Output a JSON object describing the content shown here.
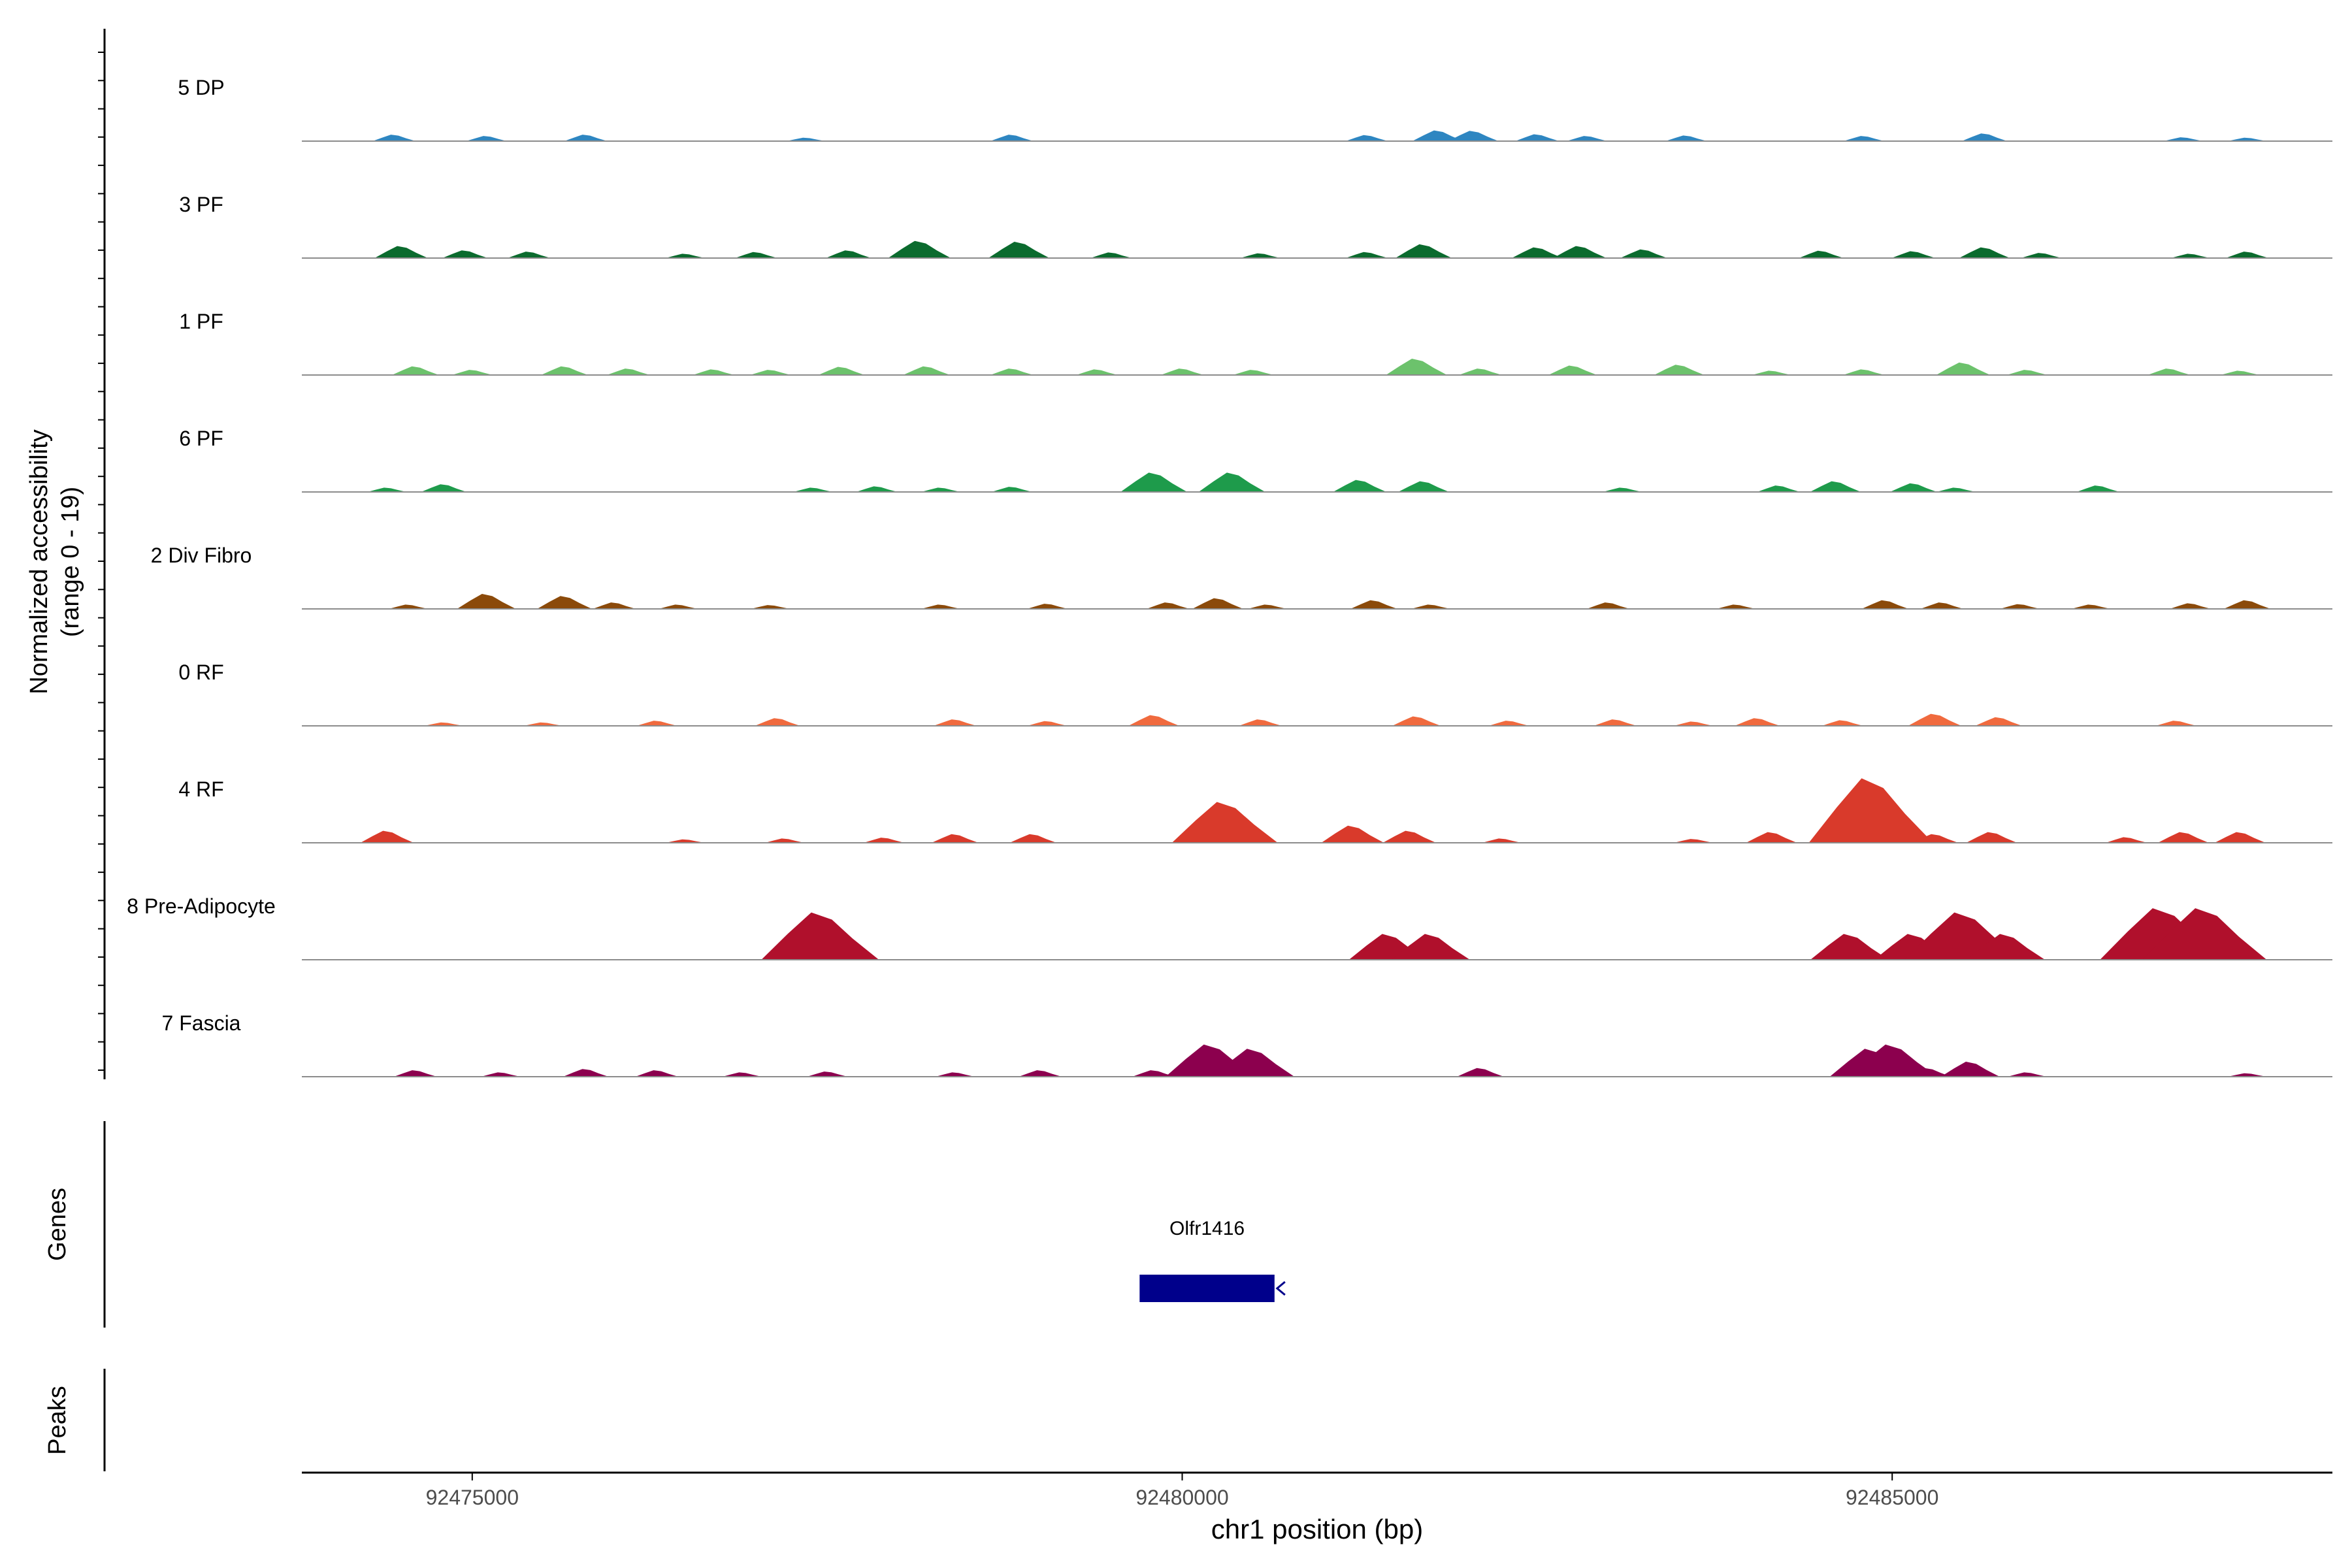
{
  "chart_data": {
    "type": "area",
    "title": "",
    "ylabel_line1": "Normalized accessibility",
    "ylabel_line2": "(range 0 - 19)",
    "xlabel": "chr1 position (bp)",
    "xlim": [
      92473800,
      92488100
    ],
    "ylim": [
      0,
      19
    ],
    "xticks": [
      92475000,
      92480000,
      92485000
    ],
    "xtick_labels": [
      "92475000",
      "92480000",
      "92485000"
    ],
    "series": [
      {
        "name": "5 DP",
        "color": "#2E86C1",
        "peaks": [
          [
            92474450,
            1.5
          ],
          [
            92475100,
            1.2
          ],
          [
            92475800,
            1.5
          ],
          [
            92477350,
            0.8
          ],
          [
            92478800,
            1.5
          ],
          [
            92481300,
            1.4
          ],
          [
            92481800,
            2.5
          ],
          [
            92482050,
            2.4
          ],
          [
            92482500,
            1.6
          ],
          [
            92482850,
            1.2
          ],
          [
            92483550,
            1.3
          ],
          [
            92484800,
            1.2
          ],
          [
            92485650,
            1.8
          ],
          [
            92487050,
            0.9
          ],
          [
            92487500,
            0.8
          ]
        ]
      },
      {
        "name": "3 PF",
        "color": "#0B6B2E",
        "peaks": [
          [
            92474500,
            2.8
          ],
          [
            92474950,
            1.8
          ],
          [
            92475400,
            1.5
          ],
          [
            92476500,
            1.0
          ],
          [
            92477000,
            1.4
          ],
          [
            92477650,
            1.8
          ],
          [
            92478150,
            4.0
          ],
          [
            92478850,
            3.8
          ],
          [
            92479500,
            1.3
          ],
          [
            92480550,
            1.1
          ],
          [
            92481300,
            1.4
          ],
          [
            92481700,
            3.2
          ],
          [
            92482500,
            2.5
          ],
          [
            92482800,
            2.8
          ],
          [
            92483250,
            2.0
          ],
          [
            92484500,
            1.7
          ],
          [
            92485150,
            1.6
          ],
          [
            92485650,
            2.5
          ],
          [
            92486050,
            1.2
          ],
          [
            92487100,
            1.0
          ],
          [
            92487500,
            1.5
          ]
        ]
      },
      {
        "name": "1 PF",
        "color": "#6CC26C",
        "peaks": [
          [
            92474600,
            2.0
          ],
          [
            92475000,
            1.2
          ],
          [
            92475650,
            2.0
          ],
          [
            92476100,
            1.5
          ],
          [
            92476700,
            1.3
          ],
          [
            92477100,
            1.2
          ],
          [
            92477600,
            1.9
          ],
          [
            92478200,
            2.0
          ],
          [
            92478800,
            1.5
          ],
          [
            92479400,
            1.3
          ],
          [
            92480000,
            1.5
          ],
          [
            92480500,
            1.2
          ],
          [
            92481650,
            3.8
          ],
          [
            92482100,
            1.5
          ],
          [
            92482750,
            2.2
          ],
          [
            92483500,
            2.4
          ],
          [
            92484150,
            1.0
          ],
          [
            92484800,
            1.3
          ],
          [
            92485500,
            2.9
          ],
          [
            92485950,
            1.2
          ],
          [
            92486950,
            1.5
          ],
          [
            92487450,
            1.0
          ]
        ]
      },
      {
        "name": "6 PF",
        "color": "#1E9B4B",
        "peaks": [
          [
            92474400,
            1.0
          ],
          [
            92474800,
            1.8
          ],
          [
            92477400,
            1.0
          ],
          [
            92477850,
            1.3
          ],
          [
            92478300,
            1.0
          ],
          [
            92478800,
            1.2
          ],
          [
            92479800,
            4.5
          ],
          [
            92480350,
            4.5
          ],
          [
            92481250,
            2.8
          ],
          [
            92481700,
            2.5
          ],
          [
            92483100,
            1.0
          ],
          [
            92484200,
            1.5
          ],
          [
            92484600,
            2.5
          ],
          [
            92485150,
            2.0
          ],
          [
            92485450,
            1.0
          ],
          [
            92486450,
            1.5
          ]
        ]
      },
      {
        "name": "2 Div Fibro",
        "color": "#8B4A0A",
        "peaks": [
          [
            92474550,
            1.0
          ],
          [
            92475100,
            3.5
          ],
          [
            92475650,
            3.0
          ],
          [
            92476000,
            1.5
          ],
          [
            92476450,
            1.0
          ],
          [
            92477100,
            0.9
          ],
          [
            92478300,
            1.0
          ],
          [
            92479050,
            1.2
          ],
          [
            92479900,
            1.5
          ],
          [
            92480250,
            2.5
          ],
          [
            92480600,
            1.0
          ],
          [
            92481350,
            2.0
          ],
          [
            92481750,
            1.0
          ],
          [
            92483000,
            1.5
          ],
          [
            92483900,
            1.0
          ],
          [
            92484950,
            2.0
          ],
          [
            92485350,
            1.5
          ],
          [
            92485900,
            1.1
          ],
          [
            92486400,
            1.0
          ],
          [
            92487100,
            1.3
          ],
          [
            92487500,
            2.0
          ]
        ]
      },
      {
        "name": "0 RF",
        "color": "#F06A3E",
        "peaks": [
          [
            92474800,
            0.8
          ],
          [
            92475500,
            0.8
          ],
          [
            92476300,
            1.2
          ],
          [
            92477150,
            1.8
          ],
          [
            92478400,
            1.5
          ],
          [
            92479050,
            1.1
          ],
          [
            92479800,
            2.5
          ],
          [
            92480550,
            1.5
          ],
          [
            92481650,
            2.2
          ],
          [
            92482300,
            1.2
          ],
          [
            92483050,
            1.5
          ],
          [
            92483600,
            1.0
          ],
          [
            92484050,
            1.8
          ],
          [
            92484650,
            1.3
          ],
          [
            92485300,
            2.8
          ],
          [
            92485750,
            2.0
          ],
          [
            92487000,
            1.2
          ]
        ]
      },
      {
        "name": "4 RF",
        "color": "#D93A2B",
        "peaks": [
          [
            92474400,
            2.8
          ],
          [
            92476500,
            0.8
          ],
          [
            92477200,
            1.0
          ],
          [
            92477900,
            1.2
          ],
          [
            92478400,
            2.0
          ],
          [
            92478950,
            2.0
          ],
          [
            92480300,
            9.5
          ],
          [
            92481200,
            4.0
          ],
          [
            92481600,
            2.8
          ],
          [
            92482250,
            1.0
          ],
          [
            92483600,
            0.9
          ],
          [
            92484150,
            2.5
          ],
          [
            92484850,
            15.0
          ],
          [
            92485300,
            2.0
          ],
          [
            92485700,
            2.5
          ],
          [
            92486650,
            1.3
          ],
          [
            92487050,
            2.5
          ],
          [
            92487450,
            2.5
          ]
        ]
      },
      {
        "name": "8 Pre-Adipocyte",
        "color": "#B0102C",
        "peaks": [
          [
            92477450,
            11.0
          ],
          [
            92481450,
            6.0
          ],
          [
            92481750,
            6.0
          ],
          [
            92484700,
            6.0
          ],
          [
            92485150,
            6.0
          ],
          [
            92485500,
            11.0
          ],
          [
            92485800,
            6.0
          ],
          [
            92486900,
            12.0
          ],
          [
            92487200,
            12.0
          ]
        ]
      },
      {
        "name": "7 Fascia",
        "color": "#8C004E",
        "peaks": [
          [
            92474600,
            1.5
          ],
          [
            92475200,
            1.0
          ],
          [
            92475800,
            1.8
          ],
          [
            92476300,
            1.5
          ],
          [
            92476900,
            1.0
          ],
          [
            92477500,
            1.2
          ],
          [
            92478400,
            1.0
          ],
          [
            92479000,
            1.5
          ],
          [
            92479800,
            1.5
          ],
          [
            92480200,
            7.5
          ],
          [
            92480500,
            6.5
          ],
          [
            92482100,
            2.0
          ],
          [
            92484850,
            6.5
          ],
          [
            92485000,
            7.5
          ],
          [
            92485250,
            2.0
          ],
          [
            92485550,
            3.5
          ],
          [
            92485950,
            1.0
          ],
          [
            92487500,
            0.8
          ]
        ]
      }
    ],
    "genes_label": "Genes",
    "peaks_label": "Peaks",
    "genes": [
      {
        "name": "Olfr1416",
        "start": 92479700,
        "end": 92480650,
        "strand": "-"
      }
    ]
  }
}
